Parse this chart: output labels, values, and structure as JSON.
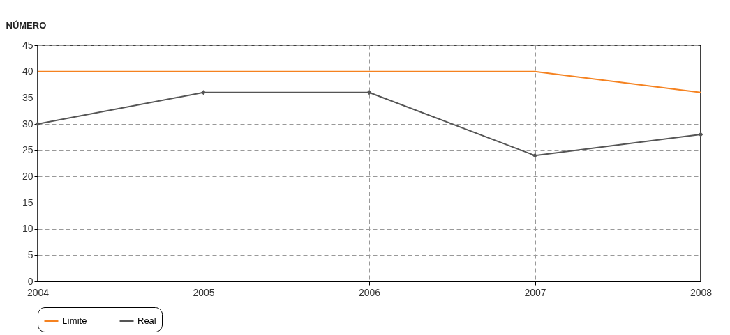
{
  "chart_data": {
    "type": "line",
    "ylabel": "NÚMERO",
    "x": [
      2004,
      2005,
      2006,
      2007,
      2008
    ],
    "series": [
      {
        "name": "Límite",
        "color": "#f58220",
        "values": [
          40,
          40,
          40,
          40,
          36
        ],
        "marker": "none"
      },
      {
        "name": "Real",
        "color": "#555555",
        "values": [
          30,
          36,
          36,
          24,
          28
        ],
        "marker": "diamond"
      }
    ],
    "xlim": [
      2004,
      2008
    ],
    "xticks": [
      2004,
      2005,
      2006,
      2007,
      2008
    ],
    "ylim": [
      0,
      45
    ],
    "yticks": [
      0,
      5,
      10,
      15,
      20,
      25,
      30,
      35,
      40,
      45
    ],
    "grid": true,
    "legend": "bottom left",
    "line_style": "solid"
  }
}
